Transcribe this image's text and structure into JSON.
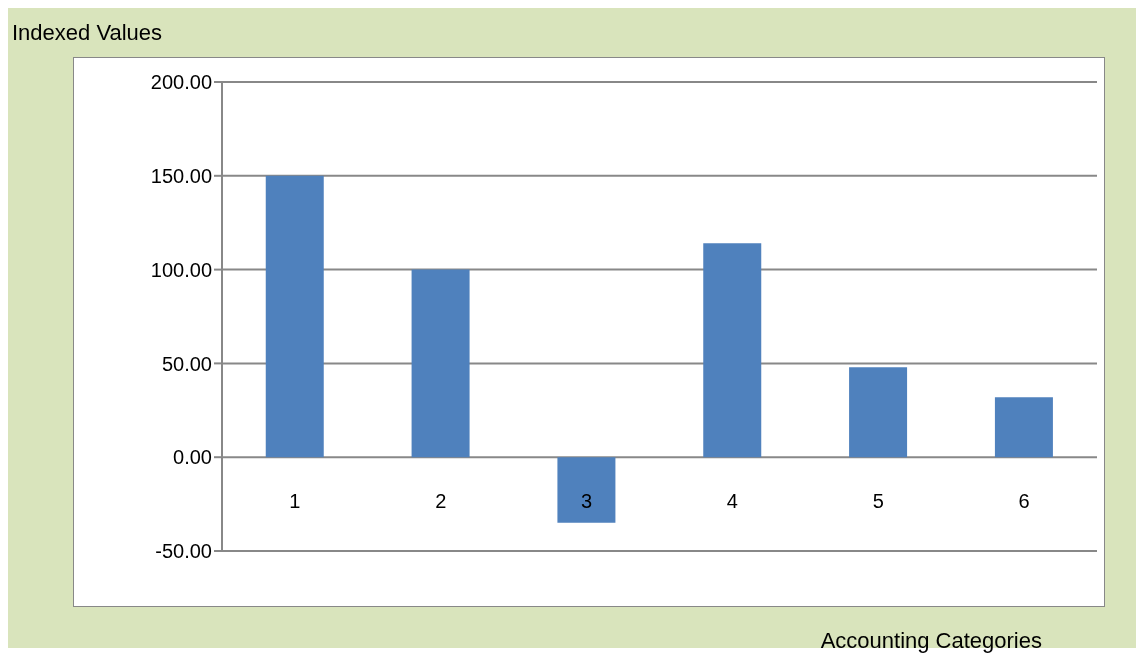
{
  "chart_data": {
    "type": "bar",
    "xlabel": "Accounting Categories",
    "ylabel": "Indexed Values",
    "categories": [
      "1",
      "2",
      "3",
      "4",
      "5",
      "6"
    ],
    "values": [
      150,
      100,
      -35,
      114,
      48,
      32
    ],
    "color": "#4f81bd",
    "ylim": [
      -50,
      200
    ],
    "yticks": [
      {
        "value": -50,
        "label": "-50.00"
      },
      {
        "value": 0,
        "label": "0.00"
      },
      {
        "value": 50,
        "label": "50.00"
      },
      {
        "value": 100,
        "label": "100.00"
      },
      {
        "value": 150,
        "label": "150.00"
      },
      {
        "value": 200,
        "label": "200.00"
      }
    ],
    "grid": "y"
  }
}
